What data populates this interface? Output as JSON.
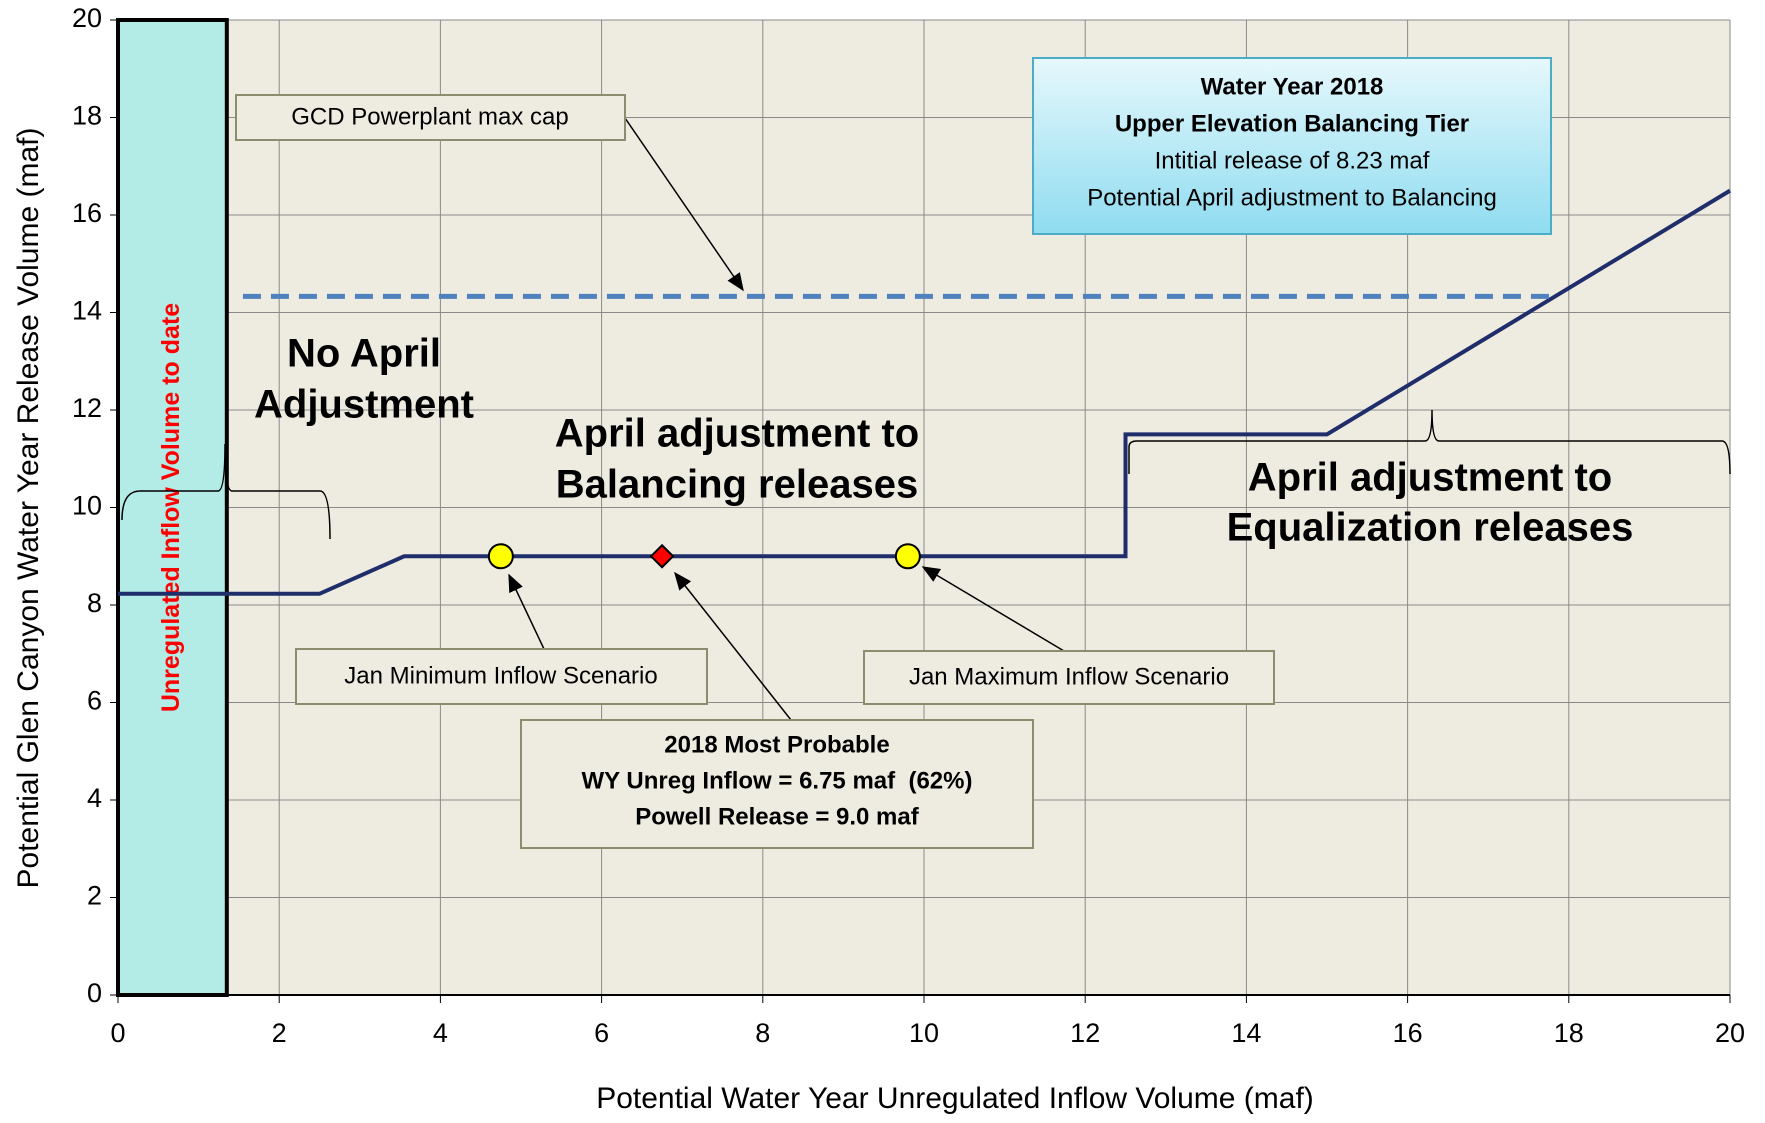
{
  "chart_data": {
    "type": "line",
    "xlabel": "Potential Water Year Unregulated Inflow Volume (maf)",
    "ylabel": "Potential Glen Canyon Water Year Release Volume (maf)",
    "xlim": [
      0,
      20
    ],
    "ylim": [
      0,
      20
    ],
    "xticks": [
      0,
      2,
      4,
      6,
      8,
      10,
      12,
      14,
      16,
      18,
      20
    ],
    "yticks": [
      0,
      2,
      4,
      6,
      8,
      10,
      12,
      14,
      16,
      18,
      20
    ],
    "grid": true,
    "series": [
      {
        "color": "#1f2d6b",
        "dashed": false,
        "x": [
          0,
          2.5,
          3.55,
          12.5,
          12.5,
          15,
          20
        ],
        "values": [
          8.23,
          8.23,
          9.0,
          9.0,
          11.5,
          11.5,
          16.5
        ]
      },
      {
        "color": "#4f81bd",
        "dashed": true,
        "x": [
          1.55,
          17.85
        ],
        "values": [
          14.33,
          14.33
        ]
      }
    ],
    "points": [
      {
        "x": 4.75,
        "y": 9.0,
        "color": "#ffff00",
        "shape": "circle"
      },
      {
        "x": 6.75,
        "y": 9.0,
        "color": "#ff0000",
        "shape": "diamond"
      },
      {
        "x": 9.8,
        "y": 9.0,
        "color": "#ffff00",
        "shape": "circle"
      }
    ],
    "shaded": {
      "x": [
        0,
        1.35
      ],
      "color": "#b3ece6",
      "label": "Unregulated Inflow Volume to date"
    },
    "annotations": [
      {
        "lines": [
          "GCD Powerplant max cap"
        ]
      },
      {
        "lines": [
          "Water Year 2018",
          "Upper Elevation Balancing Tier",
          "Intitial release of 8.23 maf",
          "Potential April adjustment to Balancing"
        ]
      },
      {
        "lines": [
          "Jan Minimum Inflow Scenario"
        ]
      },
      {
        "lines": [
          "2018 Most Probable",
          "WY Unreg Inflow = 6.75 maf  (62%)",
          "Powell Release = 9.0 maf"
        ]
      },
      {
        "lines": [
          "Jan Maximum Inflow Scenario"
        ]
      },
      {
        "lines": [
          "No April",
          "Adjustment"
        ]
      },
      {
        "lines": [
          "April adjustment to",
          "Balancing releases"
        ]
      },
      {
        "lines": [
          "April adjustment to",
          "Equalization releases"
        ]
      }
    ]
  }
}
